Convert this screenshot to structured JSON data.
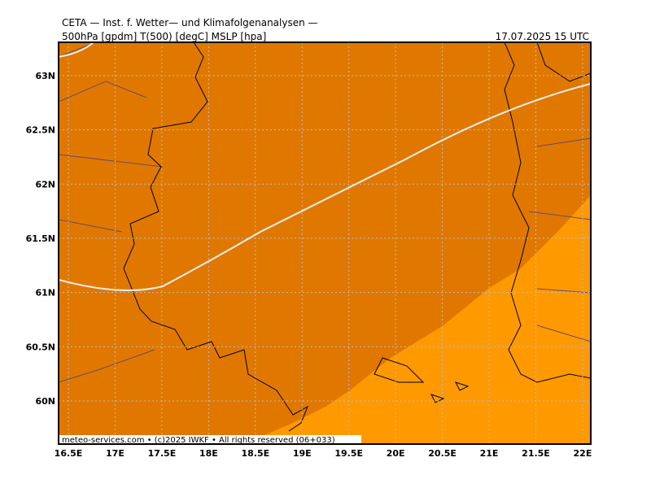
{
  "header": {
    "title": "CETA — Inst. f. Wetter— und Klimafolgenanalysen —",
    "subtitle": "500hPa [gpdm] T(500) [degC] MSLP [hpa]",
    "datetime": "17.07.2025 15 UTC"
  },
  "map": {
    "lat_labels": [
      "63N",
      "62.5N",
      "62N",
      "61.5N",
      "61N",
      "60.5N",
      "60N"
    ],
    "lon_labels": [
      "16.5E",
      "17E",
      "17.5E",
      "18E",
      "18.5E",
      "19E",
      "19.5E",
      "20E",
      "20.5E",
      "21E",
      "21.5E",
      "22E"
    ]
  },
  "footer": {
    "credit": "meteo-services.com • (c)2025 IWKF • All rights reserved (06+033)"
  }
}
